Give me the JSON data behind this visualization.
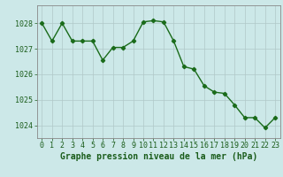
{
  "hours": [
    0,
    1,
    2,
    3,
    4,
    5,
    6,
    7,
    8,
    9,
    10,
    11,
    12,
    13,
    14,
    15,
    16,
    17,
    18,
    19,
    20,
    21,
    22,
    23
  ],
  "pressure": [
    1028.0,
    1027.3,
    1028.0,
    1027.3,
    1027.3,
    1027.3,
    1026.55,
    1027.05,
    1027.05,
    1027.3,
    1028.05,
    1028.1,
    1028.05,
    1027.3,
    1026.3,
    1026.2,
    1025.55,
    1025.3,
    1025.25,
    1024.8,
    1024.3,
    1024.3,
    1023.9,
    1024.3
  ],
  "line_color": "#1a6b1a",
  "marker": "D",
  "marker_size": 2.2,
  "bg_color": "#cce8e8",
  "grid_color": "#b0c8c8",
  "ylim": [
    1023.5,
    1028.7
  ],
  "yticks": [
    1024,
    1025,
    1026,
    1027,
    1028
  ],
  "xlabel": "Graphe pression niveau de la mer (hPa)",
  "xlabel_fontsize": 7,
  "tick_fontsize": 6,
  "axis_color": "#1a5c1a",
  "line_width": 1.0
}
